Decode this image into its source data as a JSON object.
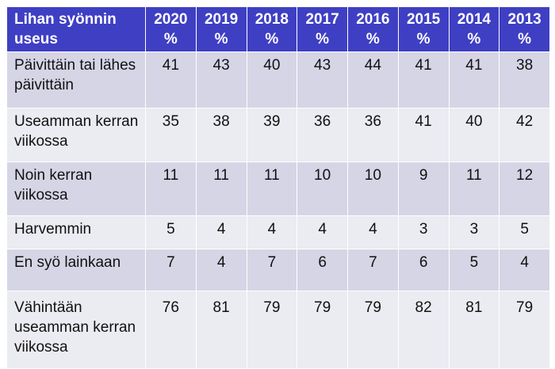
{
  "table": {
    "header_label": "Lihan syönnin useus",
    "years": [
      "2020",
      "2019",
      "2018",
      "2017",
      "2016",
      "2015",
      "2014",
      "2013"
    ],
    "unit": "%",
    "rows": [
      {
        "label": "Päivittäin tai lähes päivittäin",
        "values": [
          "41",
          "43",
          "40",
          "43",
          "44",
          "41",
          "41",
          "38"
        ]
      },
      {
        "label": "Useamman kerran viikossa",
        "values": [
          "35",
          "38",
          "39",
          "36",
          "36",
          "41",
          "40",
          "42"
        ]
      },
      {
        "label": "Noin kerran viikossa",
        "values": [
          "11",
          "11",
          "11",
          "10",
          "10",
          "9",
          "11",
          "12"
        ]
      },
      {
        "label": "Harvemmin",
        "values": [
          "5",
          "4",
          "4",
          "4",
          "4",
          "3",
          "3",
          "5"
        ]
      },
      {
        "label": "En syö lainkaan",
        "values": [
          "7",
          "4",
          "7",
          "6",
          "7",
          "6",
          "5",
          "4"
        ]
      },
      {
        "label": "Vähintään useamman kerran viikossa",
        "values": [
          "76",
          "81",
          "79",
          "79",
          "79",
          "82",
          "81",
          "79"
        ]
      }
    ]
  },
  "colors": {
    "header_bg": "#3f3fc4",
    "row_odd": "#d5d5e6",
    "row_even": "#ebebf2"
  }
}
